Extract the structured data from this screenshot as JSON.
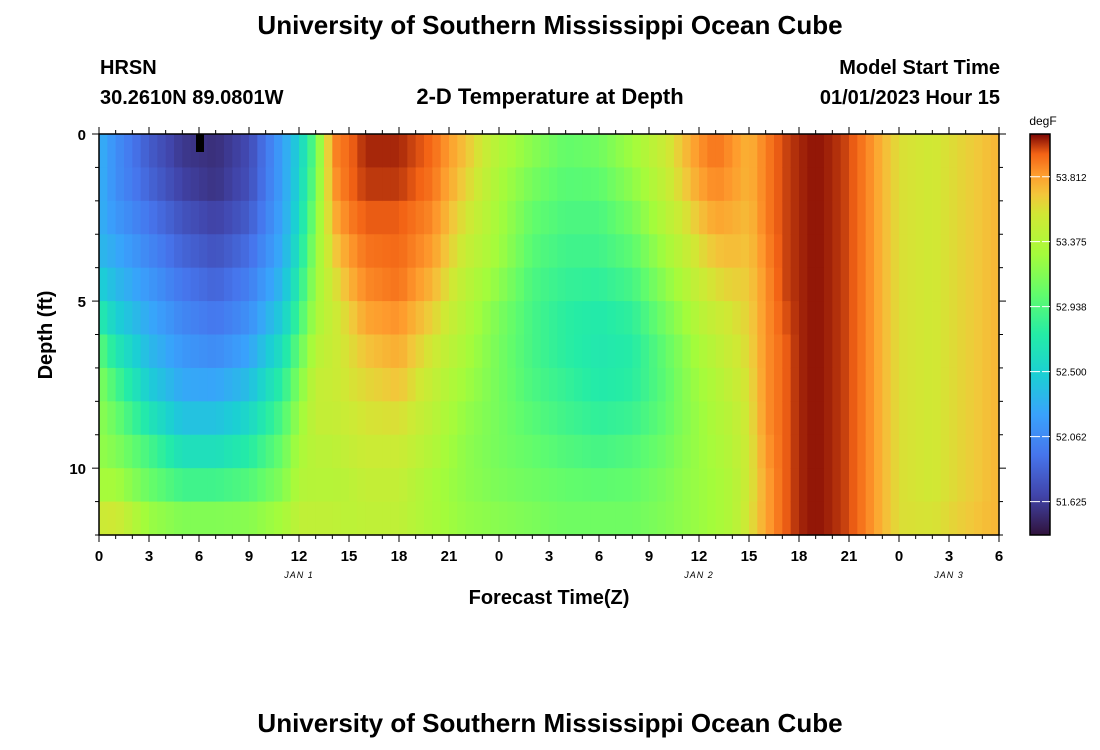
{
  "page": {
    "title_top": "University of Southern Mississippi Ocean Cube",
    "title_bottom": "University of Southern Mississippi Ocean Cube",
    "station_name": "HRSN",
    "station_coords": "30.2610N  89.0801W",
    "plot_title": "2-D Temperature at Depth",
    "model_start_label": "Model Start Time",
    "model_start_value": "01/01/2023 Hour 15"
  },
  "chart_data": {
    "type": "heatmap",
    "title": "2-D Temperature at Depth",
    "xlabel": "Forecast Time(Z)",
    "ylabel": "Depth (ft)",
    "units": "degF",
    "x_range_hours": [
      0,
      54
    ],
    "y_range_ft": [
      0,
      12
    ],
    "color_range": [
      51.4,
      54.1
    ],
    "x_ticks": [
      {
        "h": 0,
        "label": "0"
      },
      {
        "h": 3,
        "label": "3"
      },
      {
        "h": 6,
        "label": "6"
      },
      {
        "h": 9,
        "label": "9"
      },
      {
        "h": 12,
        "label": "12"
      },
      {
        "h": 15,
        "label": "15"
      },
      {
        "h": 18,
        "label": "18"
      },
      {
        "h": 21,
        "label": "21"
      },
      {
        "h": 24,
        "label": "0"
      },
      {
        "h": 27,
        "label": "3"
      },
      {
        "h": 30,
        "label": "6"
      },
      {
        "h": 33,
        "label": "9"
      },
      {
        "h": 36,
        "label": "12"
      },
      {
        "h": 39,
        "label": "15"
      },
      {
        "h": 42,
        "label": "18"
      },
      {
        "h": 45,
        "label": "21"
      },
      {
        "h": 48,
        "label": "0"
      },
      {
        "h": 51,
        "label": "3"
      },
      {
        "h": 54,
        "label": "6"
      }
    ],
    "date_labels": [
      {
        "h": 12,
        "label": "JAN 1"
      },
      {
        "h": 36,
        "label": "JAN 2"
      },
      {
        "h": 51,
        "label": "JAN 3"
      }
    ],
    "y_ticks": [
      {
        "ft": 0,
        "label": "0"
      },
      {
        "ft": 5,
        "label": "5"
      },
      {
        "ft": 10,
        "label": "10"
      }
    ],
    "colorbar_ticks": [
      {
        "v": 53.812,
        "label": "53.812"
      },
      {
        "v": 53.375,
        "label": "53.375"
      },
      {
        "v": 52.938,
        "label": "52.938"
      },
      {
        "v": 52.5,
        "label": "52.500"
      },
      {
        "v": 52.062,
        "label": "52.062"
      },
      {
        "v": 51.625,
        "label": "51.625"
      }
    ],
    "depth_levels_ft": [
      0,
      1,
      2,
      3,
      4,
      5,
      6,
      7,
      8,
      9,
      10,
      11,
      12
    ],
    "profile_hours": [
      0,
      1,
      3,
      5,
      7,
      9,
      11,
      12,
      13,
      14,
      15,
      16,
      18,
      20,
      22,
      24,
      26,
      28,
      30,
      32,
      34,
      35,
      36,
      37,
      38,
      39,
      40,
      41,
      42,
      43,
      44,
      45,
      46,
      47,
      48,
      50,
      52,
      54
    ],
    "temperature_profiles": [
      [
        52.3,
        52.3,
        52.3,
        52.3,
        52.4,
        52.6,
        52.9,
        53.1,
        53.2,
        53.2,
        53.25,
        53.35,
        53.7
      ],
      [
        52.1,
        52.1,
        52.1,
        52.2,
        52.3,
        52.4,
        52.6,
        52.8,
        53.0,
        53.1,
        53.2,
        53.4,
        53.7
      ],
      [
        51.8,
        51.8,
        51.9,
        52.0,
        52.1,
        52.2,
        52.3,
        52.4,
        52.55,
        52.8,
        53.0,
        53.1,
        53.4
      ],
      [
        51.6,
        51.6,
        51.7,
        51.8,
        51.9,
        52.0,
        52.1,
        52.2,
        52.3,
        52.5,
        52.75,
        53.0,
        53.3
      ],
      [
        51.55,
        51.55,
        51.6,
        51.7,
        51.8,
        51.9,
        52.0,
        52.15,
        52.3,
        52.5,
        52.75,
        53.0,
        53.3
      ],
      [
        51.7,
        51.7,
        51.75,
        51.85,
        51.95,
        52.05,
        52.15,
        52.3,
        52.45,
        52.65,
        52.85,
        53.05,
        53.3
      ],
      [
        52.2,
        52.2,
        52.2,
        52.25,
        52.3,
        52.4,
        52.55,
        52.7,
        52.85,
        53.0,
        53.1,
        53.2,
        53.4
      ],
      [
        52.5,
        52.5,
        52.55,
        52.6,
        52.7,
        52.8,
        52.95,
        53.1,
        53.2,
        53.3,
        53.35,
        53.4,
        53.5
      ],
      [
        53.0,
        53.05,
        53.1,
        53.2,
        53.25,
        53.3,
        53.35,
        53.45,
        53.5,
        53.45,
        53.4,
        53.4,
        53.5
      ],
      [
        53.9,
        53.85,
        53.8,
        53.7,
        53.6,
        53.5,
        53.5,
        53.5,
        53.5,
        53.45,
        53.4,
        53.4,
        53.5
      ],
      [
        53.95,
        53.95,
        53.95,
        53.85,
        53.8,
        53.7,
        53.6,
        53.6,
        53.55,
        53.5,
        53.45,
        53.4,
        53.45
      ],
      [
        54.05,
        54.05,
        54.0,
        53.95,
        53.9,
        53.85,
        53.75,
        53.65,
        53.6,
        53.55,
        53.5,
        53.45,
        53.45
      ],
      [
        54.05,
        54.05,
        54.0,
        53.95,
        53.95,
        53.9,
        53.8,
        53.75,
        53.65,
        53.55,
        53.5,
        53.45,
        53.45
      ],
      [
        53.95,
        53.95,
        53.9,
        53.85,
        53.8,
        53.7,
        53.6,
        53.5,
        53.45,
        53.4,
        53.35,
        53.3,
        53.35
      ],
      [
        53.7,
        53.7,
        53.6,
        53.55,
        53.45,
        53.4,
        53.35,
        53.3,
        53.25,
        53.2,
        53.2,
        53.2,
        53.25
      ],
      [
        53.4,
        53.35,
        53.3,
        53.3,
        53.25,
        53.15,
        53.1,
        53.1,
        53.1,
        53.1,
        53.1,
        53.15,
        53.2
      ],
      [
        53.2,
        53.15,
        53.05,
        53.0,
        52.95,
        52.9,
        52.9,
        52.9,
        52.95,
        53.0,
        53.05,
        53.1,
        53.15
      ],
      [
        53.05,
        53.0,
        52.95,
        52.9,
        52.85,
        52.8,
        52.75,
        52.8,
        52.85,
        52.9,
        53.0,
        53.05,
        53.1
      ],
      [
        53.1,
        53.05,
        52.95,
        52.9,
        52.85,
        52.75,
        52.7,
        52.7,
        52.75,
        52.85,
        52.95,
        53.05,
        53.1
      ],
      [
        53.3,
        53.25,
        53.15,
        53.05,
        52.95,
        52.85,
        52.75,
        52.75,
        52.8,
        52.9,
        53.0,
        53.05,
        53.1
      ],
      [
        53.55,
        53.5,
        53.45,
        53.35,
        53.25,
        53.15,
        53.05,
        53.0,
        53.0,
        53.05,
        53.1,
        53.15,
        53.15
      ],
      [
        53.7,
        53.7,
        53.6,
        53.5,
        53.4,
        53.3,
        53.2,
        53.15,
        53.15,
        53.15,
        53.2,
        53.2,
        53.2
      ],
      [
        53.85,
        53.85,
        53.75,
        53.65,
        53.55,
        53.45,
        53.35,
        53.3,
        53.25,
        53.25,
        53.25,
        53.25,
        53.25
      ],
      [
        53.95,
        53.9,
        53.85,
        53.75,
        53.65,
        53.55,
        53.45,
        53.4,
        53.35,
        53.35,
        53.3,
        53.3,
        53.3
      ],
      [
        53.85,
        53.85,
        53.8,
        53.75,
        53.7,
        53.6,
        53.55,
        53.5,
        53.45,
        53.4,
        53.4,
        53.35,
        53.4
      ],
      [
        53.75,
        53.75,
        53.75,
        53.7,
        53.7,
        53.65,
        53.65,
        53.6,
        53.6,
        53.55,
        53.55,
        53.55,
        53.6
      ],
      [
        53.9,
        53.9,
        53.9,
        53.9,
        53.85,
        53.85,
        53.85,
        53.85,
        53.85,
        53.85,
        53.8,
        53.8,
        53.8
      ],
      [
        54.0,
        54.0,
        54.0,
        54.0,
        54.0,
        54.0,
        53.95,
        53.95,
        53.95,
        53.95,
        53.95,
        53.95,
        53.95
      ],
      [
        54.05,
        54.05,
        54.05,
        54.05,
        54.05,
        54.05,
        54.05,
        54.05,
        54.05,
        54.05,
        54.05,
        54.05,
        54.05
      ],
      [
        54.08,
        54.08,
        54.08,
        54.08,
        54.08,
        54.08,
        54.08,
        54.08,
        54.08,
        54.08,
        54.08,
        54.08,
        54.08
      ],
      [
        54.05,
        54.05,
        54.05,
        54.05,
        54.05,
        54.05,
        54.05,
        54.05,
        54.05,
        54.05,
        54.05,
        54.05,
        54.05
      ],
      [
        54.0,
        54.0,
        54.0,
        54.0,
        54.0,
        54.0,
        54.0,
        54.0,
        54.0,
        54.0,
        54.0,
        54.0,
        54.0
      ],
      [
        53.9,
        53.9,
        53.9,
        53.9,
        53.9,
        53.9,
        53.9,
        53.9,
        53.9,
        53.9,
        53.9,
        53.9,
        53.9
      ],
      [
        53.75,
        53.75,
        53.75,
        53.75,
        53.75,
        53.75,
        53.75,
        53.75,
        53.75,
        53.75,
        53.75,
        53.75,
        53.75
      ],
      [
        53.6,
        53.6,
        53.6,
        53.6,
        53.6,
        53.6,
        53.6,
        53.6,
        53.6,
        53.6,
        53.6,
        53.6,
        53.6
      ],
      [
        53.55,
        53.55,
        53.55,
        53.55,
        53.55,
        53.55,
        53.55,
        53.55,
        53.55,
        53.55,
        53.55,
        53.55,
        53.6
      ],
      [
        53.65,
        53.65,
        53.65,
        53.65,
        53.65,
        53.65,
        53.65,
        53.65,
        53.65,
        53.65,
        53.65,
        53.65,
        53.7
      ],
      [
        53.75,
        53.75,
        53.75,
        53.75,
        53.75,
        53.75,
        53.75,
        53.75,
        53.75,
        53.75,
        53.75,
        53.75,
        53.75
      ]
    ]
  }
}
